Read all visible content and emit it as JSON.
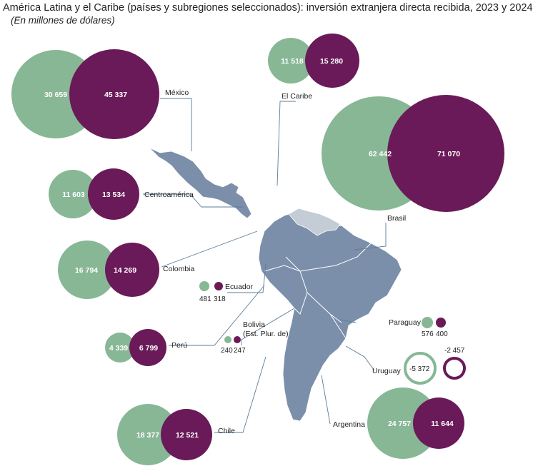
{
  "title": "América Latina y el Caribe (países y subregiones seleccionados): inversión extranjera directa recibida, 2023 y 2024",
  "subtitle": "(En millones de dólares)",
  "colors": {
    "y2023": "#88b796",
    "y2024": "#6a1a58",
    "land": "#7b8faa",
    "land_light": "#c4ccd6",
    "leader": "#5b7d98"
  },
  "chart_data": {
    "type": "bubble-map",
    "series": [
      "2023",
      "2024"
    ],
    "regions": [
      {
        "name": "México",
        "v2023": "30 659",
        "v2024": "45 337"
      },
      {
        "name": "El Caribe",
        "v2023": "11 518",
        "v2024": "15 280"
      },
      {
        "name": "Brasil",
        "v2023": "62 442",
        "v2024": "71 070"
      },
      {
        "name": "Centroamérica",
        "v2023": "11 603",
        "v2024": "13 534"
      },
      {
        "name": "Colombia",
        "v2023": "16 794",
        "v2024": "14 269"
      },
      {
        "name": "Ecuador",
        "v2023": "481",
        "v2024": "318"
      },
      {
        "name": "Perú",
        "v2023": "4 339",
        "v2024": "6 799"
      },
      {
        "name": "Bolivia (Est. Plur. de)",
        "v2023": "240",
        "v2024": "247"
      },
      {
        "name": "Paraguay",
        "v2023": "576",
        "v2024": "400"
      },
      {
        "name": "Uruguay",
        "v2023": "-5 372",
        "v2024": "-2 457"
      },
      {
        "name": "Chile",
        "v2023": "18 377",
        "v2024": "12 521"
      },
      {
        "name": "Argentina",
        "v2023": "24 757",
        "v2024": "11 644"
      }
    ]
  },
  "labels": {
    "mexico": "México",
    "caribe": "El Caribe",
    "brasil": "Brasil",
    "centro": "Centroamérica",
    "colombia": "Colombia",
    "ecuador": "Ecuador",
    "peru": "Perú",
    "bolivia1": "Bolivia",
    "bolivia2": "(Est. Plur. de)",
    "paraguay": "Paraguay",
    "uruguay": "Uruguay",
    "chile": "Chile",
    "argentina": "Argentina"
  }
}
